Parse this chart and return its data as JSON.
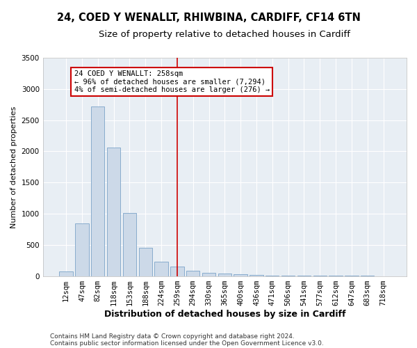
{
  "title1": "24, COED Y WENALLT, RHIWBINA, CARDIFF, CF14 6TN",
  "title2": "Size of property relative to detached houses in Cardiff",
  "xlabel": "Distribution of detached houses by size in Cardiff",
  "ylabel": "Number of detached properties",
  "bins": [
    "12sqm",
    "47sqm",
    "82sqm",
    "118sqm",
    "153sqm",
    "188sqm",
    "224sqm",
    "259sqm",
    "294sqm",
    "330sqm",
    "365sqm",
    "400sqm",
    "436sqm",
    "471sqm",
    "506sqm",
    "541sqm",
    "577sqm",
    "612sqm",
    "647sqm",
    "683sqm",
    "718sqm"
  ],
  "values": [
    70,
    840,
    2720,
    2060,
    1010,
    450,
    230,
    155,
    80,
    55,
    40,
    25,
    15,
    10,
    5,
    4,
    3,
    2,
    2,
    1,
    0
  ],
  "bar_color": "#ccd9e8",
  "bar_edge_color": "#7ba3c8",
  "vline_x_index": 7,
  "vline_color": "#cc0000",
  "annotation_line1": "24 COED Y WENALLT: 258sqm",
  "annotation_line2": "← 96% of detached houses are smaller (7,294)",
  "annotation_line3": "4% of semi-detached houses are larger (276) →",
  "annotation_box_color": "#cc0000",
  "ylim": [
    0,
    3500
  ],
  "yticks": [
    0,
    500,
    1000,
    1500,
    2000,
    2500,
    3000,
    3500
  ],
  "footer1": "Contains HM Land Registry data © Crown copyright and database right 2024.",
  "footer2": "Contains public sector information licensed under the Open Government Licence v3.0.",
  "plot_bg_color": "#e8eef4",
  "grid_color": "#ffffff",
  "fig_bg_color": "#ffffff",
  "title1_fontsize": 10.5,
  "title2_fontsize": 9.5,
  "xlabel_fontsize": 9,
  "ylabel_fontsize": 8,
  "tick_fontsize": 7.5,
  "annot_fontsize": 7.5,
  "footer_fontsize": 6.5
}
